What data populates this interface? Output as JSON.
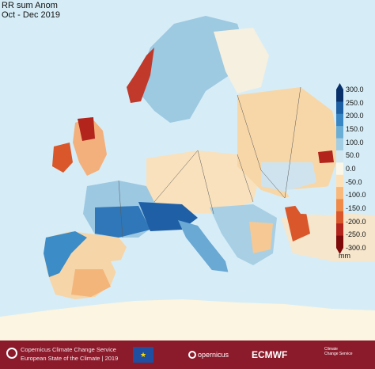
{
  "map": {
    "title": "RR sum Anom",
    "period": "Oct - Dec 2019",
    "unit": "mm",
    "colorbar": {
      "ticks": [
        "300.0",
        "250.0",
        "200.0",
        "150.0",
        "100.0",
        "50.0",
        "0.0",
        "-50.0",
        "-100.0",
        "-150.0",
        "-200.0",
        "-250.0",
        "-300.0"
      ],
      "colors": [
        "#08306b",
        "#1c5fa3",
        "#3887c4",
        "#6aaed6",
        "#a3cde3",
        "#d4e8f2",
        "#fbf7e8",
        "#fde0b6",
        "#f9b97a",
        "#f08a48",
        "#d9572b",
        "#b2241c",
        "#7f0a0a"
      ]
    }
  },
  "footer": {
    "line1": "Copernicus Climate Change Service",
    "line2": "European State of the Climate | 2019",
    "logo_copernicus": "opernicus",
    "logo_ecmwf": "ECMWF",
    "logo_ccs_line1": "Climate",
    "logo_ccs_line2": "Change Service"
  }
}
